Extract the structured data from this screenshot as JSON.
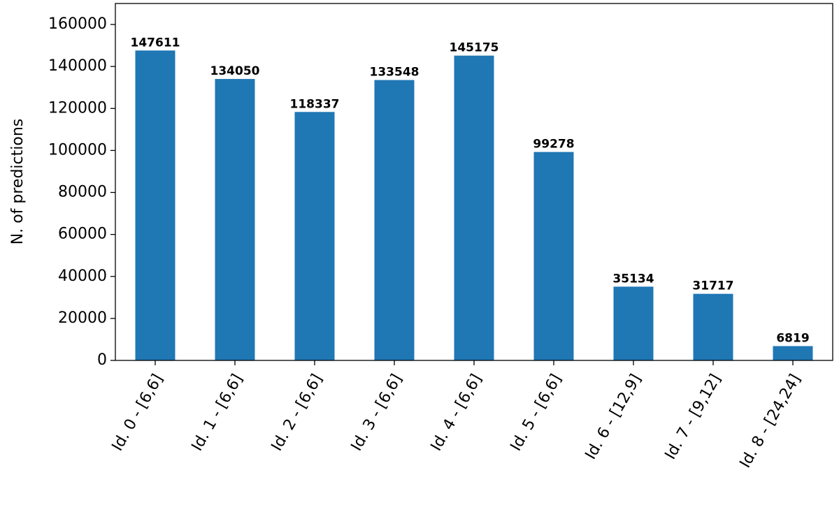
{
  "chart_data": {
    "type": "bar",
    "y_label": "N. of predictions",
    "categories": [
      "Id. 0 - [6,6]",
      "Id. 1 - [6,6]",
      "Id. 2 - [6,6]",
      "Id. 3 - [6,6]",
      "Id. 4 - [6,6]",
      "Id. 5 - [6,6]",
      "Id. 6 - [12,9]",
      "Id. 7 - [9,12]",
      "Id. 8 - [24,24]"
    ],
    "values": [
      147611,
      134050,
      118337,
      133548,
      145175,
      99278,
      35134,
      31717,
      6819
    ],
    "color": "#1f77b4",
    "ylim": [
      0,
      170000
    ],
    "yticks": [
      0,
      20000,
      40000,
      60000,
      80000,
      100000,
      120000,
      140000,
      160000
    ]
  }
}
